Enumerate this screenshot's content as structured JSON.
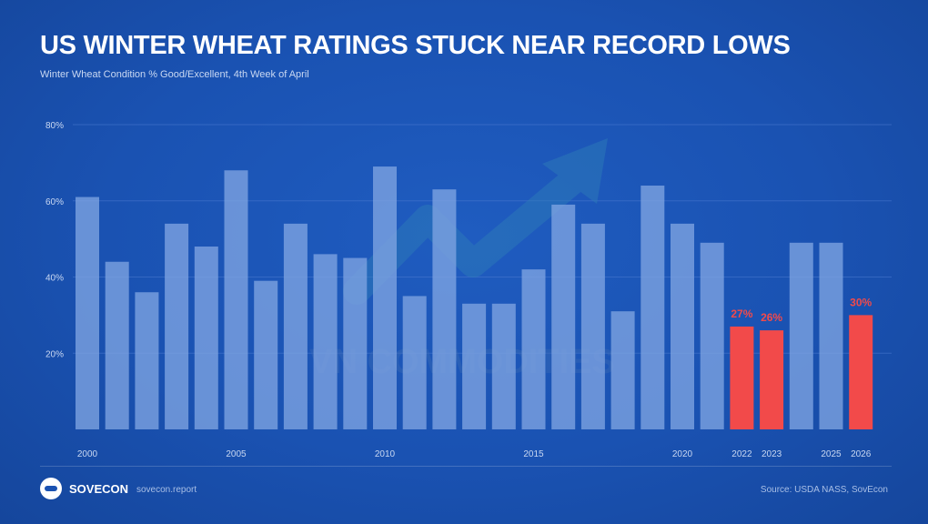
{
  "chart_data": {
    "type": "bar",
    "title": "US WINTER WHEAT RATINGS STUCK NEAR RECORD LOWS",
    "subtitle": "Winter Wheat Condition % Good/Excellent, 4th Week of April",
    "categories": [
      "2000",
      "2001",
      "2002",
      "2003",
      "2004",
      "2005",
      "2006",
      "2007",
      "2008",
      "2009",
      "2010",
      "2011",
      "2012",
      "2013",
      "2014",
      "2015",
      "2016",
      "2017",
      "2018",
      "2019",
      "2020",
      "2021",
      "2022",
      "2023",
      "2024",
      "2025",
      "2026"
    ],
    "values": [
      61,
      44,
      36,
      54,
      48,
      68,
      39,
      54,
      46,
      45,
      69,
      35,
      63,
      33,
      33,
      42,
      59,
      54,
      31,
      64,
      54,
      49,
      27,
      26,
      49,
      49,
      30
    ],
    "highlighted": [
      "2022",
      "2023",
      "2026"
    ],
    "data_labels": {
      "2022": "27%",
      "2023": "26%",
      "2026": "30%"
    },
    "x_tick_labels": [
      "2000",
      "2005",
      "2010",
      "2015",
      "2020",
      "2022",
      "2023",
      "2025",
      "2026"
    ],
    "y_ticks": [
      20,
      40,
      60,
      80
    ],
    "y_tick_labels": [
      "20%",
      "40%",
      "60%",
      "80%"
    ],
    "ylim": [
      0,
      80
    ],
    "grid": true,
    "colors": {
      "bar": "#7fa4e2",
      "highlight": "#f24a4a",
      "grid": "#4a7ad0",
      "label": "#c9d8f2"
    }
  },
  "watermark": {
    "text": "VN COMMODITIES"
  },
  "footer": {
    "brand": "SOVECON",
    "site": "sovecon.report",
    "source": "Source: USDA NASS, SovEcon"
  }
}
